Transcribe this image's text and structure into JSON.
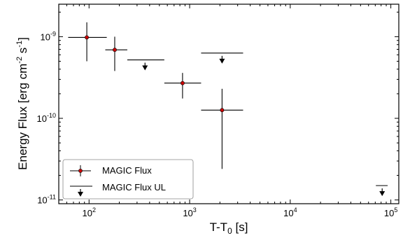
{
  "chart_data": {
    "type": "scatter",
    "xscale": "log",
    "yscale": "log",
    "xlim": [
      50,
      120000
    ],
    "ylim": [
      9e-12,
      2.5e-09
    ],
    "xlabel": "T-T0 [s]",
    "ylabel": "Energy Flux [erg cm-2 s-1]",
    "x_ticks": [
      {
        "base": "10",
        "exp": "2",
        "value": 100
      },
      {
        "base": "10",
        "exp": "3",
        "value": 1000
      },
      {
        "base": "10",
        "exp": "4",
        "value": 10000
      },
      {
        "base": "10",
        "exp": "5",
        "value": 100000
      }
    ],
    "y_ticks": [
      {
        "base": "10",
        "exp": "-11",
        "value": 1e-11
      },
      {
        "base": "10",
        "exp": "-10",
        "value": 1e-10
      },
      {
        "base": "10",
        "exp": "-9",
        "value": 1e-09
      }
    ],
    "grid": false,
    "legend": {
      "position": "bottom-left",
      "entries": [
        "MAGIC Flux",
        "MAGIC Flux UL"
      ]
    },
    "series": [
      {
        "name": "MAGIC Flux",
        "color": "#cc0000",
        "points": [
          {
            "x": 95,
            "xlo": 62,
            "xhi": 150,
            "y": 9.8e-10,
            "ylo": 5e-10,
            "yhi": 1.5e-09
          },
          {
            "x": 180,
            "xlo": 145,
            "xhi": 240,
            "y": 6.9e-10,
            "ylo": 3.8e-10,
            "yhi": 1e-09
          },
          {
            "x": 850,
            "xlo": 560,
            "xhi": 1300,
            "y": 2.7e-10,
            "ylo": 1.75e-10,
            "yhi": 3.6e-10
          },
          {
            "x": 2100,
            "xlo": 1300,
            "xhi": 3400,
            "y": 1.26e-10,
            "ylo": 2.4e-11,
            "yhi": 2.3e-10
          }
        ]
      },
      {
        "name": "MAGIC Flux UL",
        "color": "#000000",
        "points": [
          {
            "x": 360,
            "xlo": 240,
            "xhi": 560,
            "y": 5.2e-10
          },
          {
            "x": 2100,
            "xlo": 1300,
            "xhi": 3400,
            "y": 6.3e-10
          },
          {
            "x": 82000,
            "xlo": 71000,
            "xhi": 93000,
            "y": 1.5e-11
          }
        ]
      }
    ]
  }
}
